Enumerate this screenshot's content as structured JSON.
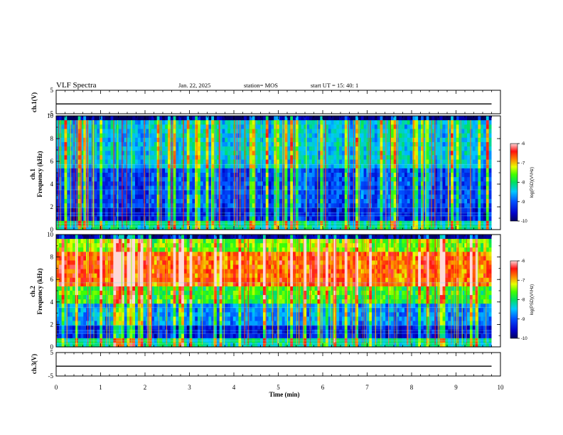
{
  "header": {
    "title": "VLF Spectra",
    "date": "Jan. 22, 2025",
    "station": "station= MOS",
    "start": "start  UT =   15: 40: 1"
  },
  "chart_data": [
    {
      "type": "line",
      "panel": "ch1-voltage",
      "ylabel": "ch.1(V)",
      "ylim": [
        -5,
        5
      ],
      "yticks": [
        "5",
        "-5"
      ],
      "series": [
        {
          "values": [
            -0.8,
            -0.8
          ]
        }
      ],
      "x": [
        0,
        9.8
      ]
    },
    {
      "type": "heatmap",
      "panel": "ch1-spectrogram",
      "ylabel": "ch.1\nFrequency (kHz)",
      "ylim": [
        0,
        10
      ],
      "yticks": [
        "0",
        "2",
        "4",
        "6",
        "8",
        "10"
      ],
      "colorbar": {
        "label": "log(PSD)(V²/Hz)",
        "range": [
          -10,
          -6
        ],
        "ticks": [
          "-6",
          "-7",
          "-8",
          "-9",
          "-10"
        ]
      }
    },
    {
      "type": "heatmap",
      "panel": "ch2-spectrogram",
      "ylabel": "ch.2\nFrequency (kHz)",
      "ylim": [
        0,
        10
      ],
      "yticks": [
        "0",
        "2",
        "4",
        "6",
        "8",
        "10"
      ],
      "colorbar": {
        "label": "log(PSD)(V²/Hz)",
        "range": [
          -10,
          -6
        ],
        "ticks": [
          "-6",
          "-7",
          "-8",
          "-9",
          "-10"
        ]
      }
    },
    {
      "type": "line",
      "panel": "ch3-voltage",
      "ylabel": "ch.3(V)",
      "ylim": [
        -5,
        5
      ],
      "yticks": [
        "5",
        "-5"
      ],
      "series": [
        {
          "values": [
            -0.8,
            -0.8
          ]
        }
      ],
      "x": [
        0,
        9.8
      ]
    }
  ],
  "xaxis": {
    "label": "Time  (min)",
    "range": [
      0,
      10
    ],
    "ticks": [
      "0",
      "1",
      "2",
      "3",
      "4",
      "5",
      "6",
      "7",
      "8",
      "9",
      "10"
    ]
  },
  "colors": {
    "background": "#ffffff",
    "axis": "#000000"
  }
}
